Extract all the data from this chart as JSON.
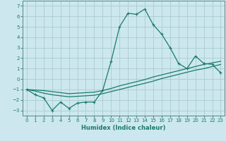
{
  "title": "",
  "xlabel": "Humidex (Indice chaleur)",
  "xlim": [
    -0.5,
    23.5
  ],
  "ylim": [
    -3.5,
    7.5
  ],
  "yticks": [
    -3,
    -2,
    -1,
    0,
    1,
    2,
    3,
    4,
    5,
    6,
    7
  ],
  "xticks": [
    0,
    1,
    2,
    3,
    4,
    5,
    6,
    7,
    8,
    9,
    10,
    11,
    12,
    13,
    14,
    15,
    16,
    17,
    18,
    19,
    20,
    21,
    22,
    23
  ],
  "bg_color": "#cce8ee",
  "grid_color": "#aacccc",
  "line_color": "#1a7a6e",
  "line1_x": [
    0,
    1,
    2,
    3,
    4,
    5,
    6,
    7,
    8,
    9,
    10,
    11,
    12,
    13,
    14,
    15,
    16,
    17,
    18,
    19,
    20,
    21,
    22,
    23
  ],
  "line1_y": [
    -1.0,
    -1.5,
    -1.8,
    -3.0,
    -2.2,
    -2.8,
    -2.3,
    -2.2,
    -2.2,
    -1.1,
    1.7,
    5.0,
    6.3,
    6.2,
    6.7,
    5.2,
    4.3,
    3.0,
    1.5,
    1.0,
    2.2,
    1.5,
    1.4,
    0.6
  ],
  "line2_x": [
    0,
    1,
    2,
    3,
    4,
    5,
    6,
    7,
    8,
    9,
    10,
    11,
    12,
    13,
    14,
    15,
    16,
    17,
    18,
    19,
    20,
    21,
    22,
    23
  ],
  "line2_y": [
    -1.0,
    -1.15,
    -1.35,
    -1.5,
    -1.6,
    -1.7,
    -1.65,
    -1.6,
    -1.55,
    -1.4,
    -1.2,
    -1.0,
    -0.8,
    -0.6,
    -0.4,
    -0.2,
    0.05,
    0.25,
    0.45,
    0.65,
    0.85,
    1.0,
    1.2,
    1.4
  ],
  "line3_x": [
    0,
    1,
    2,
    3,
    4,
    5,
    6,
    7,
    8,
    9,
    10,
    11,
    12,
    13,
    14,
    15,
    16,
    17,
    18,
    19,
    20,
    21,
    22,
    23
  ],
  "line3_y": [
    -1.0,
    -1.05,
    -1.1,
    -1.2,
    -1.3,
    -1.4,
    -1.35,
    -1.3,
    -1.25,
    -1.1,
    -0.9,
    -0.65,
    -0.45,
    -0.25,
    -0.05,
    0.2,
    0.4,
    0.6,
    0.8,
    1.0,
    1.2,
    1.4,
    1.55,
    1.7
  ]
}
